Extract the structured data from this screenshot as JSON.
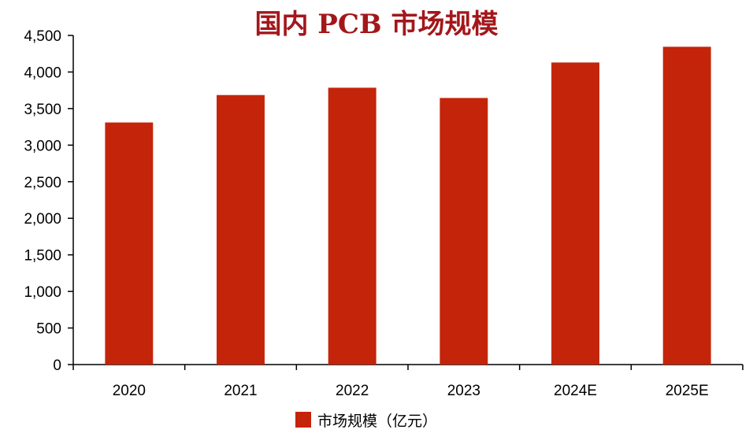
{
  "chart_data": {
    "type": "bar",
    "title": "国内 PCB 市场规模",
    "categories": [
      "2020",
      "2021",
      "2022",
      "2023",
      "2024E",
      "2025E"
    ],
    "series": [
      {
        "name": "市场规模（亿元）",
        "values": [
          3310,
          3685,
          3785,
          3645,
          4130,
          4345
        ],
        "color": "#c4240a"
      }
    ],
    "y_ticks": [
      "0",
      "500",
      "1,000",
      "1,500",
      "2,000",
      "2,500",
      "3,000",
      "3,500",
      "4,000",
      "4,500"
    ],
    "ylim": [
      0,
      4500
    ],
    "xlabel": "",
    "ylabel": "",
    "grid": false,
    "legend_position": "bottom-center"
  },
  "colors": {
    "bar": "#c4240a",
    "title": "#a3171b",
    "axis": "#000000"
  }
}
